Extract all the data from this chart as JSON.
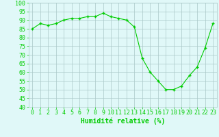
{
  "x": [
    0,
    1,
    2,
    3,
    4,
    5,
    6,
    7,
    8,
    9,
    10,
    11,
    12,
    13,
    14,
    15,
    16,
    17,
    18,
    19,
    20,
    21,
    22,
    23
  ],
  "y": [
    85,
    88,
    87,
    88,
    90,
    91,
    91,
    92,
    92,
    94,
    92,
    91,
    90,
    86,
    68,
    60,
    55,
    50,
    50,
    52,
    58,
    63,
    74,
    88
  ],
  "x_labels": [
    "0",
    "1",
    "2",
    "3",
    "4",
    "5",
    "6",
    "7",
    "8",
    "9",
    "10",
    "11",
    "12",
    "13",
    "14",
    "15",
    "16",
    "17",
    "18",
    "19",
    "20",
    "21",
    "22",
    "23"
  ],
  "y_ticks": [
    40,
    45,
    50,
    55,
    60,
    65,
    70,
    75,
    80,
    85,
    90,
    95,
    100
  ],
  "ylim": [
    40,
    100
  ],
  "xlim": [
    -0.5,
    23.5
  ],
  "line_color": "#00cc00",
  "marker_color": "#00cc00",
  "bg_color": "#e0f8f8",
  "grid_color": "#aac8c8",
  "xlabel": "Humidité relative (%)",
  "xlabel_color": "#00cc00",
  "xlabel_fontsize": 7,
  "tick_color": "#00cc00",
  "tick_fontsize": 6,
  "ytick_fontsize": 6
}
